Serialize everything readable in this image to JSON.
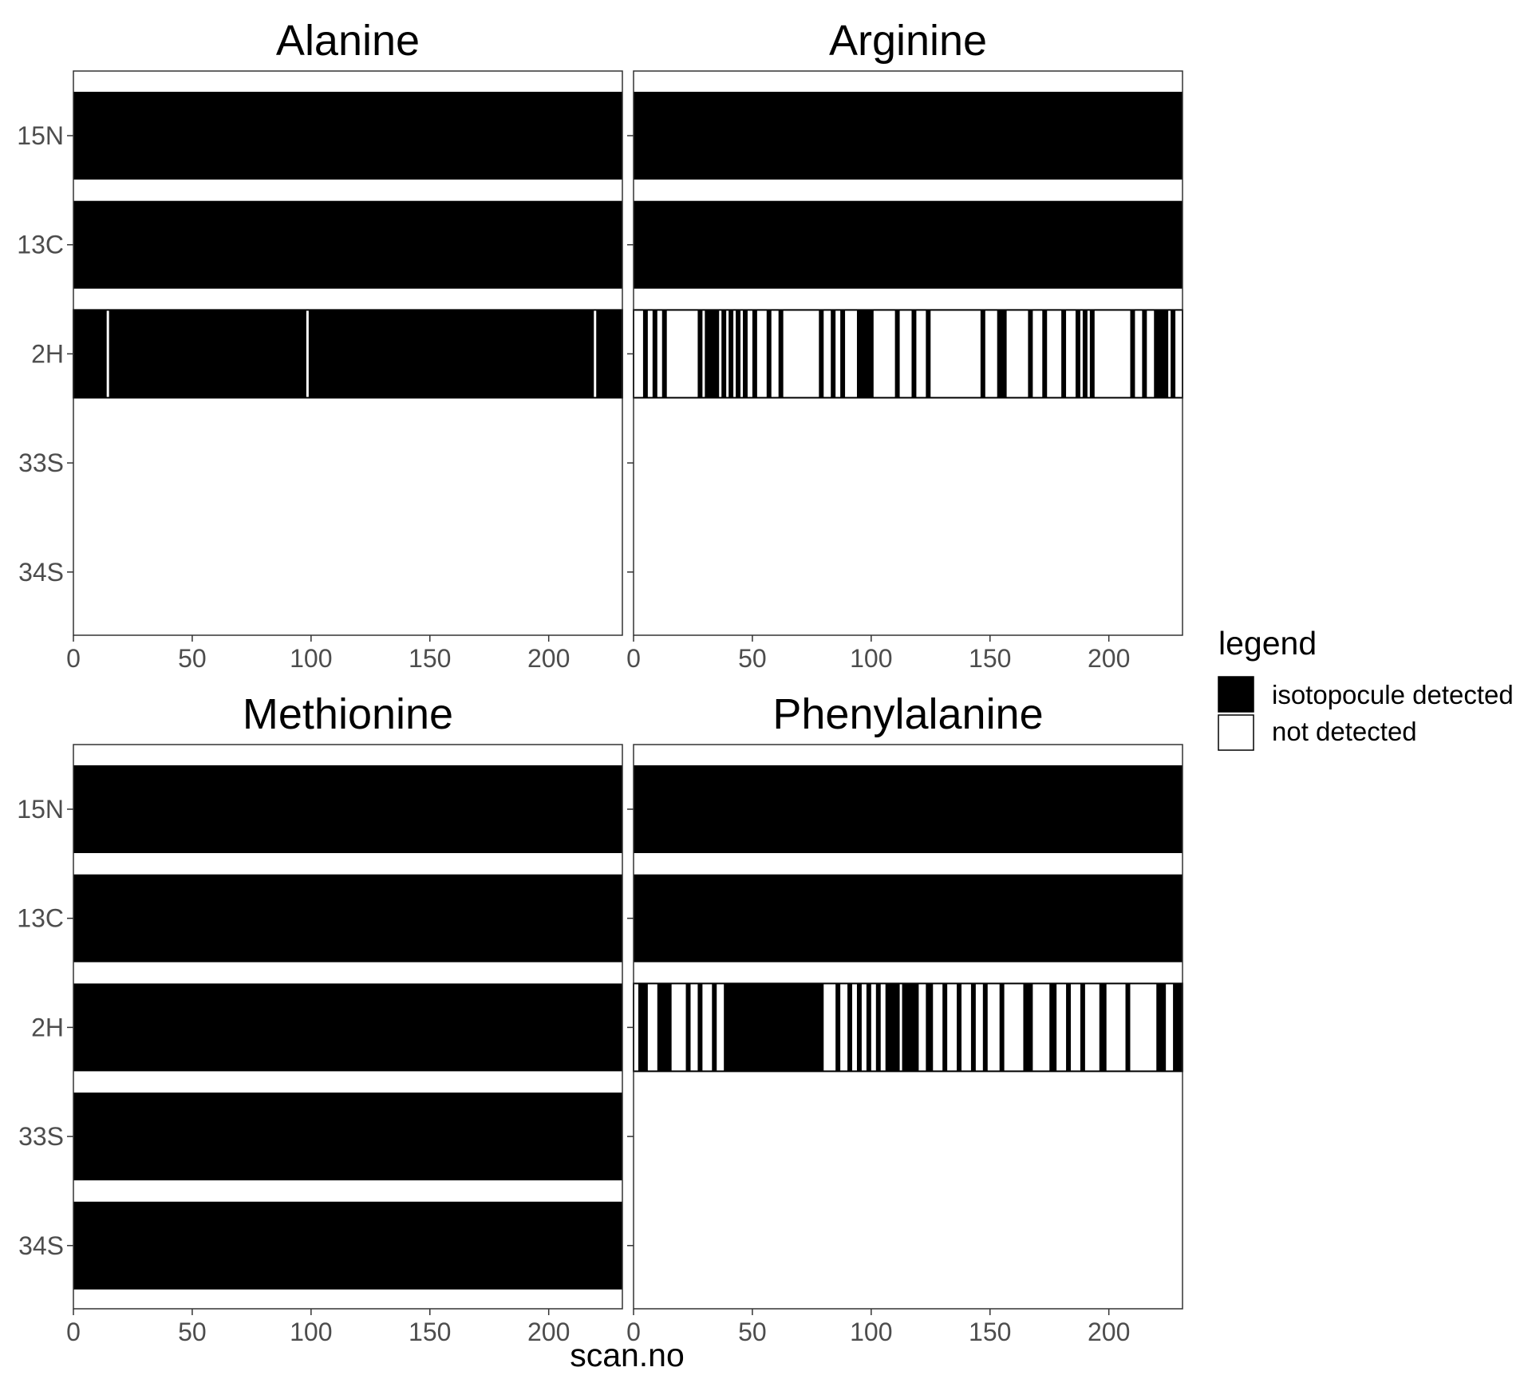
{
  "chart_data": {
    "type": "heatmap",
    "xlabel": "scan.no",
    "ylabel": "",
    "xlim": [
      0,
      231
    ],
    "x_ticks": [
      "0",
      "50",
      "100",
      "150",
      "200"
    ],
    "isotopocules": [
      "15N",
      "13C",
      "2H",
      "33S",
      "34S"
    ],
    "legend": {
      "title": "legend",
      "placement": "right",
      "entries": [
        {
          "label": "isotopocule detected",
          "color": "#000000"
        },
        {
          "label": "not detected",
          "color": "#ffffff"
        }
      ]
    },
    "panels": [
      {
        "title": "Alanine",
        "rows": [
          {
            "isotopocule": "15N",
            "detected_ranges": [
              [
                0,
                231
              ]
            ]
          },
          {
            "isotopocule": "13C",
            "detected_ranges": [
              [
                0,
                231
              ]
            ]
          },
          {
            "isotopocule": "2H",
            "detected_ranges": [
              [
                0,
                14
              ],
              [
                15,
                98
              ],
              [
                99,
                219
              ],
              [
                220,
                231
              ]
            ]
          },
          {
            "isotopocule": "33S",
            "detected_ranges": []
          },
          {
            "isotopocule": "34S",
            "detected_ranges": []
          }
        ]
      },
      {
        "title": "Arginine",
        "rows": [
          {
            "isotopocule": "15N",
            "detected_ranges": [
              [
                0,
                231
              ]
            ]
          },
          {
            "isotopocule": "13C",
            "detected_ranges": [
              [
                0,
                231
              ]
            ]
          },
          {
            "isotopocule": "2H",
            "detected_ranges": [
              [
                4,
                6
              ],
              [
                8,
                10
              ],
              [
                12,
                14
              ],
              [
                27,
                29
              ],
              [
                30,
                36
              ],
              [
                37,
                39
              ],
              [
                40,
                42
              ],
              [
                43,
                45
              ],
              [
                46,
                48
              ],
              [
                50,
                52
              ],
              [
                56,
                58
              ],
              [
                61,
                63
              ],
              [
                78,
                80
              ],
              [
                83,
                85
              ],
              [
                87,
                89
              ],
              [
                94,
                101
              ],
              [
                110,
                112
              ],
              [
                117,
                119
              ],
              [
                123,
                125
              ],
              [
                146,
                148
              ],
              [
                153,
                157
              ],
              [
                166,
                168
              ],
              [
                172,
                174
              ],
              [
                180,
                182
              ],
              [
                186,
                188
              ],
              [
                189,
                191
              ],
              [
                192,
                194
              ],
              [
                209,
                211
              ],
              [
                214,
                216
              ],
              [
                219,
                225
              ],
              [
                226,
                228
              ]
            ]
          },
          {
            "isotopocule": "33S",
            "detected_ranges": []
          },
          {
            "isotopocule": "34S",
            "detected_ranges": []
          }
        ]
      },
      {
        "title": "Methionine",
        "rows": [
          {
            "isotopocule": "15N",
            "detected_ranges": [
              [
                0,
                231
              ]
            ]
          },
          {
            "isotopocule": "13C",
            "detected_ranges": [
              [
                0,
                231
              ]
            ]
          },
          {
            "isotopocule": "2H",
            "detected_ranges": [
              [
                0,
                231
              ]
            ]
          },
          {
            "isotopocule": "33S",
            "detected_ranges": [
              [
                0,
                231
              ]
            ]
          },
          {
            "isotopocule": "34S",
            "detected_ranges": [
              [
                0,
                231
              ]
            ]
          }
        ]
      },
      {
        "title": "Phenylalanine",
        "rows": [
          {
            "isotopocule": "15N",
            "detected_ranges": [
              [
                0,
                231
              ]
            ]
          },
          {
            "isotopocule": "13C",
            "detected_ranges": [
              [
                0,
                231
              ]
            ]
          },
          {
            "isotopocule": "2H",
            "detected_ranges": [
              [
                2,
                6
              ],
              [
                10,
                16
              ],
              [
                22,
                24
              ],
              [
                27,
                29
              ],
              [
                33,
                35
              ],
              [
                38,
                80
              ],
              [
                85,
                87
              ],
              [
                90,
                92
              ],
              [
                94,
                96
              ],
              [
                98,
                100
              ],
              [
                102,
                104
              ],
              [
                106,
                112
              ],
              [
                113,
                120
              ],
              [
                123,
                126
              ],
              [
                130,
                132
              ],
              [
                136,
                138
              ],
              [
                142,
                144
              ],
              [
                147,
                149
              ],
              [
                154,
                156
              ],
              [
                164,
                168
              ],
              [
                175,
                178
              ],
              [
                182,
                184
              ],
              [
                188,
                190
              ],
              [
                196,
                199
              ],
              [
                207,
                209
              ],
              [
                220,
                224
              ],
              [
                227,
                231
              ]
            ]
          },
          {
            "isotopocule": "33S",
            "detected_ranges": []
          },
          {
            "isotopocule": "34S",
            "detected_ranges": []
          }
        ]
      }
    ]
  }
}
